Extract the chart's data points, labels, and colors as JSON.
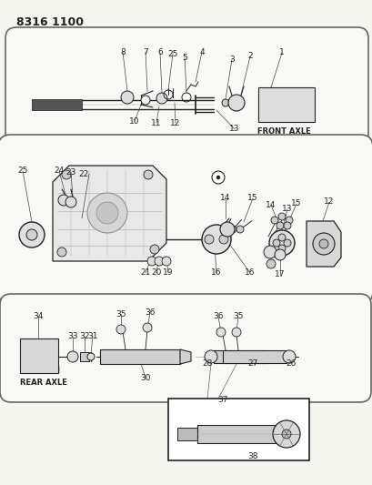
{
  "title": "8316 1100",
  "bg_color": "#f5f5f0",
  "text_color": "#1a1a1a",
  "fig_width": 4.1,
  "fig_height": 5.33,
  "dpi": 100,
  "front_axle_label": "FRONT AXLE",
  "rear_axle_label": "REAR AXLE"
}
